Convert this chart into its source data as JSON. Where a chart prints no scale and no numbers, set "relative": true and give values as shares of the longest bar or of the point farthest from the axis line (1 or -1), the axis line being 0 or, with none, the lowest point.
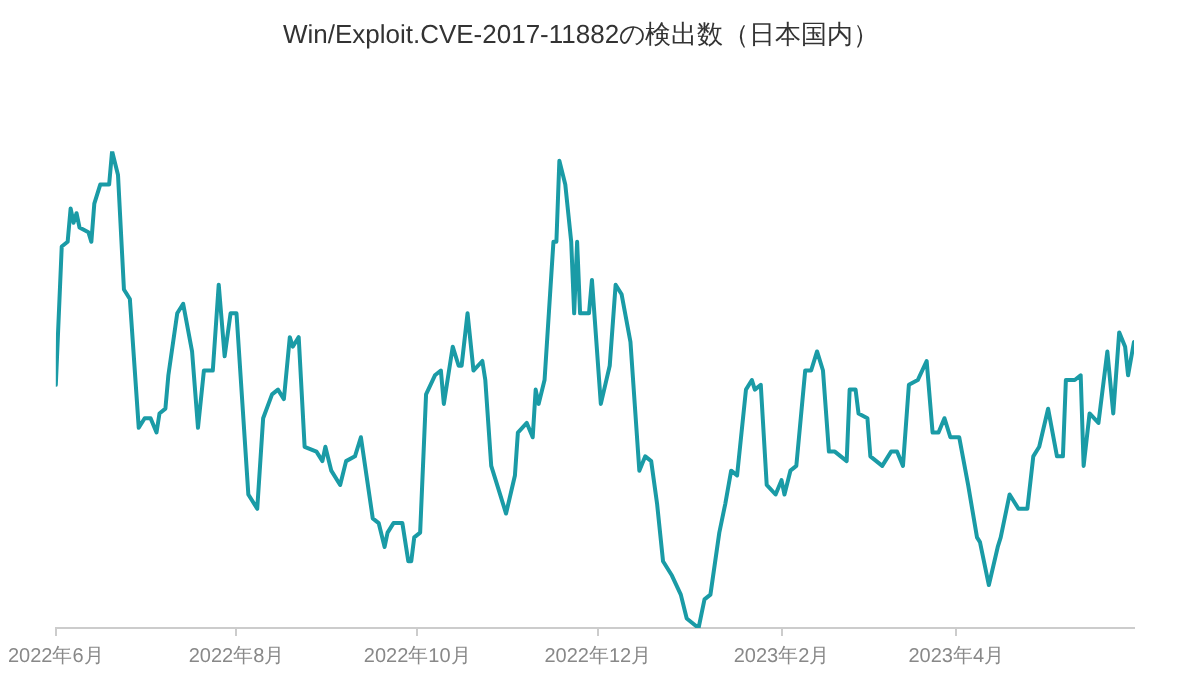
{
  "chart_data": {
    "type": "line",
    "title": "Win/Exploit.CVE-2017-11882の検出数（日本国内）",
    "relative": true,
    "marker": "none",
    "x": [
      "2022-06-01",
      "2022-06-03",
      "2022-06-05",
      "2022-06-06",
      "2022-06-07",
      "2022-06-08",
      "2022-06-09",
      "2022-06-12",
      "2022-06-13",
      "2022-06-14",
      "2022-06-16",
      "2022-06-19",
      "2022-06-20",
      "2022-06-22",
      "2022-06-24",
      "2022-06-26",
      "2022-06-29",
      "2022-07-01",
      "2022-07-03",
      "2022-07-05",
      "2022-07-06",
      "2022-07-08",
      "2022-07-09",
      "2022-07-12",
      "2022-07-14",
      "2022-07-17",
      "2022-07-19",
      "2022-07-21",
      "2022-07-24",
      "2022-07-26",
      "2022-07-28",
      "2022-07-30",
      "2022-08-01",
      "2022-08-03",
      "2022-08-05",
      "2022-08-08",
      "2022-08-10",
      "2022-08-13",
      "2022-08-15",
      "2022-08-17",
      "2022-08-19",
      "2022-08-20",
      "2022-08-22",
      "2022-08-24",
      "2022-08-28",
      "2022-08-30",
      "2022-08-31",
      "2022-09-02",
      "2022-09-05",
      "2022-09-07",
      "2022-09-10",
      "2022-09-12",
      "2022-09-16",
      "2022-09-18",
      "2022-09-20",
      "2022-09-21",
      "2022-09-23",
      "2022-09-26",
      "2022-09-28",
      "2022-09-29",
      "2022-09-30",
      "2022-10-02",
      "2022-10-04",
      "2022-10-07",
      "2022-10-09",
      "2022-10-10",
      "2022-10-13",
      "2022-10-15",
      "2022-10-16",
      "2022-10-18",
      "2022-10-20",
      "2022-10-23",
      "2022-10-24",
      "2022-10-26",
      "2022-10-28",
      "2022-10-31",
      "2022-11-03",
      "2022-11-04",
      "2022-11-07",
      "2022-11-09",
      "2022-11-10",
      "2022-11-11",
      "2022-11-13",
      "2022-11-16",
      "2022-11-17",
      "2022-11-18",
      "2022-11-20",
      "2022-11-22",
      "2022-11-23",
      "2022-11-24",
      "2022-11-25",
      "2022-11-28",
      "2022-11-29",
      "2022-12-02",
      "2022-12-05",
      "2022-12-07",
      "2022-12-09",
      "2022-12-12",
      "2022-12-15",
      "2022-12-17",
      "2022-12-19",
      "2022-12-21",
      "2022-12-23",
      "2022-12-26",
      "2022-12-29",
      "2022-12-31",
      "2023-01-04",
      "2023-01-06",
      "2023-01-08",
      "2023-01-11",
      "2023-01-13",
      "2023-01-15",
      "2023-01-17",
      "2023-01-20",
      "2023-01-22",
      "2023-01-23",
      "2023-01-25",
      "2023-01-27",
      "2023-01-30",
      "2023-02-01",
      "2023-02-02",
      "2023-02-04",
      "2023-02-06",
      "2023-02-09",
      "2023-02-11",
      "2023-02-13",
      "2023-02-15",
      "2023-02-17",
      "2023-02-19",
      "2023-02-23",
      "2023-02-24",
      "2023-02-26",
      "2023-02-27",
      "2023-03-02",
      "2023-03-03",
      "2023-03-07",
      "2023-03-10",
      "2023-03-12",
      "2023-03-14",
      "2023-03-16",
      "2023-03-19",
      "2023-03-22",
      "2023-03-24",
      "2023-03-26",
      "2023-03-28",
      "2023-03-30",
      "2023-04-02",
      "2023-04-05",
      "2023-04-08",
      "2023-04-09",
      "2023-04-12",
      "2023-04-15",
      "2023-04-16",
      "2023-04-19",
      "2023-04-22",
      "2023-04-25",
      "2023-04-27",
      "2023-04-29",
      "2023-05-02",
      "2023-05-05",
      "2023-05-07",
      "2023-05-08",
      "2023-05-11",
      "2023-05-13",
      "2023-05-14",
      "2023-05-16",
      "2023-05-19",
      "2023-05-22",
      "2023-05-24",
      "2023-05-26",
      "2023-05-28",
      "2023-05-29",
      "2023-05-31"
    ],
    "series": [
      {
        "color": "#1a9ba6",
        "values": [
          0.51,
          0.8,
          0.81,
          0.88,
          0.85,
          0.87,
          0.84,
          0.83,
          0.81,
          0.89,
          0.93,
          0.93,
          1.0,
          0.95,
          0.71,
          0.69,
          0.42,
          0.44,
          0.44,
          0.41,
          0.45,
          0.46,
          0.53,
          0.66,
          0.68,
          0.58,
          0.42,
          0.54,
          0.54,
          0.72,
          0.57,
          0.66,
          0.66,
          0.47,
          0.28,
          0.25,
          0.44,
          0.49,
          0.5,
          0.48,
          0.61,
          0.59,
          0.61,
          0.38,
          0.37,
          0.35,
          0.38,
          0.33,
          0.3,
          0.35,
          0.36,
          0.4,
          0.23,
          0.22,
          0.17,
          0.2,
          0.22,
          0.22,
          0.14,
          0.14,
          0.19,
          0.2,
          0.49,
          0.53,
          0.54,
          0.47,
          0.59,
          0.55,
          0.55,
          0.66,
          0.54,
          0.56,
          0.52,
          0.34,
          0.3,
          0.24,
          0.32,
          0.41,
          0.43,
          0.4,
          0.5,
          0.47,
          0.52,
          0.81,
          0.81,
          0.98,
          0.93,
          0.81,
          0.66,
          0.81,
          0.66,
          0.66,
          0.73,
          0.47,
          0.55,
          0.72,
          0.7,
          0.6,
          0.33,
          0.36,
          0.35,
          0.26,
          0.14,
          0.11,
          0.07,
          0.02,
          0.0,
          0.06,
          0.07,
          0.2,
          0.26,
          0.33,
          0.32,
          0.5,
          0.52,
          0.5,
          0.51,
          0.3,
          0.28,
          0.31,
          0.28,
          0.33,
          0.34,
          0.54,
          0.54,
          0.58,
          0.54,
          0.37,
          0.37,
          0.35,
          0.5,
          0.5,
          0.45,
          0.44,
          0.36,
          0.34,
          0.37,
          0.37,
          0.34,
          0.51,
          0.52,
          0.56,
          0.41,
          0.41,
          0.44,
          0.4,
          0.4,
          0.3,
          0.19,
          0.18,
          0.09,
          0.17,
          0.19,
          0.28,
          0.25,
          0.25,
          0.36,
          0.38,
          0.46,
          0.36,
          0.36,
          0.52,
          0.52,
          0.53,
          0.34,
          0.45,
          0.43,
          0.58,
          0.45,
          0.62,
          0.59,
          0.53,
          0.6
        ]
      }
    ],
    "xlim": [
      "2022-06-01",
      "2023-05-31"
    ],
    "xticks": [
      {
        "value": "2022-06-01",
        "label": "2022年6月"
      },
      {
        "value": "2022-08-01",
        "label": "2022年8月"
      },
      {
        "value": "2022-10-01",
        "label": "2022年10月"
      },
      {
        "value": "2022-12-01",
        "label": "2022年12月"
      },
      {
        "value": "2023-02-01",
        "label": "2023年2月"
      },
      {
        "value": "2023-04-01",
        "label": "2023年4月"
      }
    ]
  }
}
